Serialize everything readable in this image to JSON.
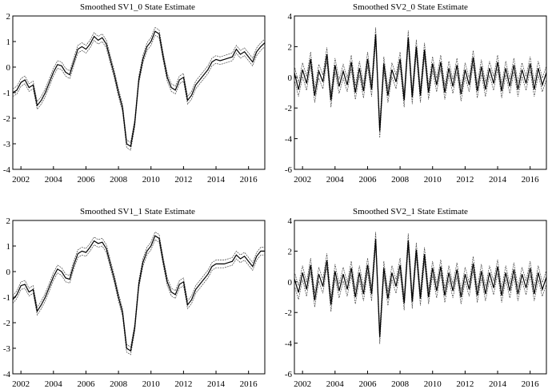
{
  "chart_data": [
    {
      "type": "line",
      "title": "Smoothed SV1_0 State Estimate",
      "xlim": [
        2001.5,
        2017.0
      ],
      "ylim": [
        -4,
        2
      ],
      "xticks": [
        "2002",
        "2004",
        "2006",
        "2008",
        "2010",
        "2012",
        "2014",
        "2016"
      ],
      "yticks": [
        "2",
        "1",
        "0",
        "-1",
        "-2",
        "-3",
        "-4"
      ],
      "band": 0.15,
      "series": [
        {
          "style": "solid",
          "x": [
            2001.5,
            2001.75,
            2002.0,
            2002.25,
            2002.5,
            2002.75,
            2003.0,
            2003.25,
            2003.5,
            2003.75,
            2004.0,
            2004.25,
            2004.5,
            2004.75,
            2005.0,
            2005.25,
            2005.5,
            2005.75,
            2006.0,
            2006.25,
            2006.5,
            2006.75,
            2007.0,
            2007.25,
            2007.5,
            2007.75,
            2008.0,
            2008.25,
            2008.5,
            2008.75,
            2009.0,
            2009.25,
            2009.5,
            2009.75,
            2010.0,
            2010.25,
            2010.5,
            2010.75,
            2011.0,
            2011.25,
            2011.5,
            2011.75,
            2012.0,
            2012.25,
            2012.5,
            2012.75,
            2013.0,
            2013.25,
            2013.5,
            2013.75,
            2014.0,
            2014.25,
            2014.5,
            2014.75,
            2015.0,
            2015.25,
            2015.5,
            2015.75,
            2016.0,
            2016.25,
            2016.5,
            2016.75,
            2017.0
          ],
          "values": [
            -1.0,
            -0.9,
            -0.6,
            -0.5,
            -0.8,
            -0.7,
            -1.5,
            -1.3,
            -1.0,
            -0.6,
            -0.2,
            0.1,
            0.05,
            -0.2,
            -0.3,
            0.2,
            0.7,
            0.8,
            0.7,
            0.9,
            1.2,
            1.05,
            1.15,
            0.9,
            0.3,
            -0.3,
            -1.0,
            -1.6,
            -3.0,
            -3.1,
            -2.2,
            -0.5,
            0.3,
            0.8,
            1.0,
            1.4,
            1.3,
            0.4,
            -0.4,
            -0.8,
            -0.9,
            -0.5,
            -0.4,
            -1.3,
            -1.1,
            -0.7,
            -0.5,
            -0.3,
            -0.1,
            0.2,
            0.3,
            0.25,
            0.3,
            0.35,
            0.4,
            0.7,
            0.5,
            0.6,
            0.4,
            0.2,
            0.6,
            0.8,
            0.95
          ]
        }
      ]
    },
    {
      "type": "line",
      "title": "Smoothed SV2_0 State Estimate",
      "xlim": [
        2001.5,
        2017.0
      ],
      "ylim": [
        -6,
        4
      ],
      "xticks": [
        "2002",
        "2004",
        "2006",
        "2008",
        "2010",
        "2012",
        "2014",
        "2016"
      ],
      "yticks": [
        "4",
        "2",
        "0",
        "-2",
        "-4",
        "-6"
      ],
      "band": 0.45,
      "series": [
        {
          "style": "solid",
          "x": [
            2001.5,
            2001.75,
            2002.0,
            2002.25,
            2002.5,
            2002.75,
            2003.0,
            2003.25,
            2003.5,
            2003.75,
            2004.0,
            2004.25,
            2004.5,
            2004.75,
            2005.0,
            2005.25,
            2005.5,
            2005.75,
            2006.0,
            2006.25,
            2006.5,
            2006.75,
            2007.0,
            2007.25,
            2007.5,
            2007.75,
            2008.0,
            2008.25,
            2008.5,
            2008.75,
            2009.0,
            2009.25,
            2009.5,
            2009.75,
            2010.0,
            2010.25,
            2010.5,
            2010.75,
            2011.0,
            2011.25,
            2011.5,
            2011.75,
            2012.0,
            2012.25,
            2012.5,
            2012.75,
            2013.0,
            2013.25,
            2013.5,
            2013.75,
            2014.0,
            2014.25,
            2014.5,
            2014.75,
            2015.0,
            2015.25,
            2015.5,
            2015.75,
            2016.0,
            2016.25,
            2016.5,
            2016.75,
            2017.0
          ],
          "values": [
            0.3,
            -0.8,
            0.5,
            -0.4,
            1.2,
            -1.2,
            0.4,
            -0.3,
            1.5,
            -1.5,
            0.8,
            -0.6,
            0.4,
            -0.5,
            1.0,
            -1.0,
            0.6,
            -0.9,
            1.2,
            -0.8,
            2.8,
            -3.5,
            0.9,
            -1.2,
            0.5,
            -0.3,
            1.2,
            -1.5,
            2.6,
            -1.3,
            2.0,
            -1.2,
            1.8,
            -1.0,
            0.9,
            -0.5,
            1.0,
            -1.0,
            0.6,
            -0.6,
            0.8,
            -1.1,
            0.5,
            -0.5,
            1.3,
            -0.9,
            0.7,
            -0.8,
            0.6,
            -0.4,
            1.0,
            -0.9,
            0.6,
            -0.6,
            0.8,
            -0.8,
            0.5,
            -0.4,
            0.9,
            -0.8,
            0.6,
            -0.5,
            0.3
          ]
        }
      ]
    },
    {
      "type": "line",
      "title": "Smoothed SV1_1 State Estimate",
      "xlim": [
        2001.5,
        2017.0
      ],
      "ylim": [
        -4,
        2
      ],
      "xticks": [
        "2002",
        "2004",
        "2006",
        "2008",
        "2010",
        "2012",
        "2014",
        "2016"
      ],
      "yticks": [
        "2",
        "1",
        "0",
        "-1",
        "-2",
        "-3",
        "-4"
      ],
      "band": 0.15,
      "series": [
        {
          "style": "solid",
          "x": [
            2001.5,
            2001.75,
            2002.0,
            2002.25,
            2002.5,
            2002.75,
            2003.0,
            2003.25,
            2003.5,
            2003.75,
            2004.0,
            2004.25,
            2004.5,
            2004.75,
            2005.0,
            2005.25,
            2005.5,
            2005.75,
            2006.0,
            2006.25,
            2006.5,
            2006.75,
            2007.0,
            2007.25,
            2007.5,
            2007.75,
            2008.0,
            2008.25,
            2008.5,
            2008.75,
            2009.0,
            2009.25,
            2009.5,
            2009.75,
            2010.0,
            2010.25,
            2010.5,
            2010.75,
            2011.0,
            2011.25,
            2011.5,
            2011.75,
            2012.0,
            2012.25,
            2012.5,
            2012.75,
            2013.0,
            2013.25,
            2013.5,
            2013.75,
            2014.0,
            2014.25,
            2014.5,
            2014.75,
            2015.0,
            2015.25,
            2015.5,
            2015.75,
            2016.0,
            2016.25,
            2016.5,
            2016.75,
            2017.0
          ],
          "values": [
            -1.1,
            -0.9,
            -0.55,
            -0.5,
            -0.8,
            -0.7,
            -1.55,
            -1.3,
            -1.0,
            -0.6,
            -0.2,
            0.1,
            0.0,
            -0.25,
            -0.3,
            0.25,
            0.7,
            0.8,
            0.75,
            0.95,
            1.2,
            1.1,
            1.15,
            0.9,
            0.3,
            -0.3,
            -1.0,
            -1.6,
            -3.0,
            -3.1,
            -2.2,
            -0.5,
            0.35,
            0.8,
            1.0,
            1.4,
            1.3,
            0.4,
            -0.4,
            -0.8,
            -0.9,
            -0.5,
            -0.4,
            -1.3,
            -1.1,
            -0.7,
            -0.5,
            -0.3,
            -0.1,
            0.2,
            0.3,
            0.3,
            0.3,
            0.35,
            0.4,
            0.65,
            0.5,
            0.6,
            0.4,
            0.2,
            0.6,
            0.8,
            0.8
          ]
        }
      ]
    },
    {
      "type": "line",
      "title": "Smoothed SV2_1 State Estimate",
      "xlim": [
        2001.5,
        2017.0
      ],
      "ylim": [
        -6,
        4
      ],
      "xticks": [
        "2002",
        "2004",
        "2006",
        "2008",
        "2010",
        "2012",
        "2014",
        "2016"
      ],
      "yticks": [
        "4",
        "2",
        "0",
        "-2",
        "-4",
        "-6"
      ],
      "band": 0.45,
      "series": [
        {
          "style": "solid",
          "x": [
            2001.5,
            2001.75,
            2002.0,
            2002.25,
            2002.5,
            2002.75,
            2003.0,
            2003.25,
            2003.5,
            2003.75,
            2004.0,
            2004.25,
            2004.5,
            2004.75,
            2005.0,
            2005.25,
            2005.5,
            2005.75,
            2006.0,
            2006.25,
            2006.5,
            2006.75,
            2007.0,
            2007.25,
            2007.5,
            2007.75,
            2008.0,
            2008.25,
            2008.5,
            2008.75,
            2009.0,
            2009.25,
            2009.5,
            2009.75,
            2010.0,
            2010.25,
            2010.5,
            2010.75,
            2011.0,
            2011.25,
            2011.5,
            2011.75,
            2012.0,
            2012.25,
            2012.5,
            2012.75,
            2013.0,
            2013.25,
            2013.5,
            2013.75,
            2014.0,
            2014.25,
            2014.5,
            2014.75,
            2015.0,
            2015.25,
            2015.5,
            2015.75,
            2016.0,
            2016.25,
            2016.5,
            2016.75,
            2017.0
          ],
          "values": [
            0.2,
            -0.7,
            0.6,
            -0.5,
            1.1,
            -1.2,
            0.5,
            -0.3,
            1.4,
            -1.5,
            0.7,
            -0.6,
            0.5,
            -0.5,
            0.9,
            -1.0,
            0.6,
            -0.8,
            1.1,
            -0.8,
            2.8,
            -3.6,
            0.9,
            -1.1,
            0.6,
            -0.3,
            1.1,
            -1.4,
            2.7,
            -1.3,
            2.1,
            -1.1,
            1.8,
            -1.0,
            0.9,
            -0.6,
            1.0,
            -0.9,
            0.6,
            -0.6,
            0.8,
            -1.0,
            0.5,
            -0.5,
            1.2,
            -0.9,
            0.7,
            -0.8,
            0.6,
            -0.4,
            1.0,
            -0.9,
            0.6,
            -0.6,
            0.8,
            -0.8,
            0.5,
            -0.4,
            0.9,
            -0.8,
            0.6,
            -0.5,
            0.3
          ]
        }
      ]
    }
  ]
}
